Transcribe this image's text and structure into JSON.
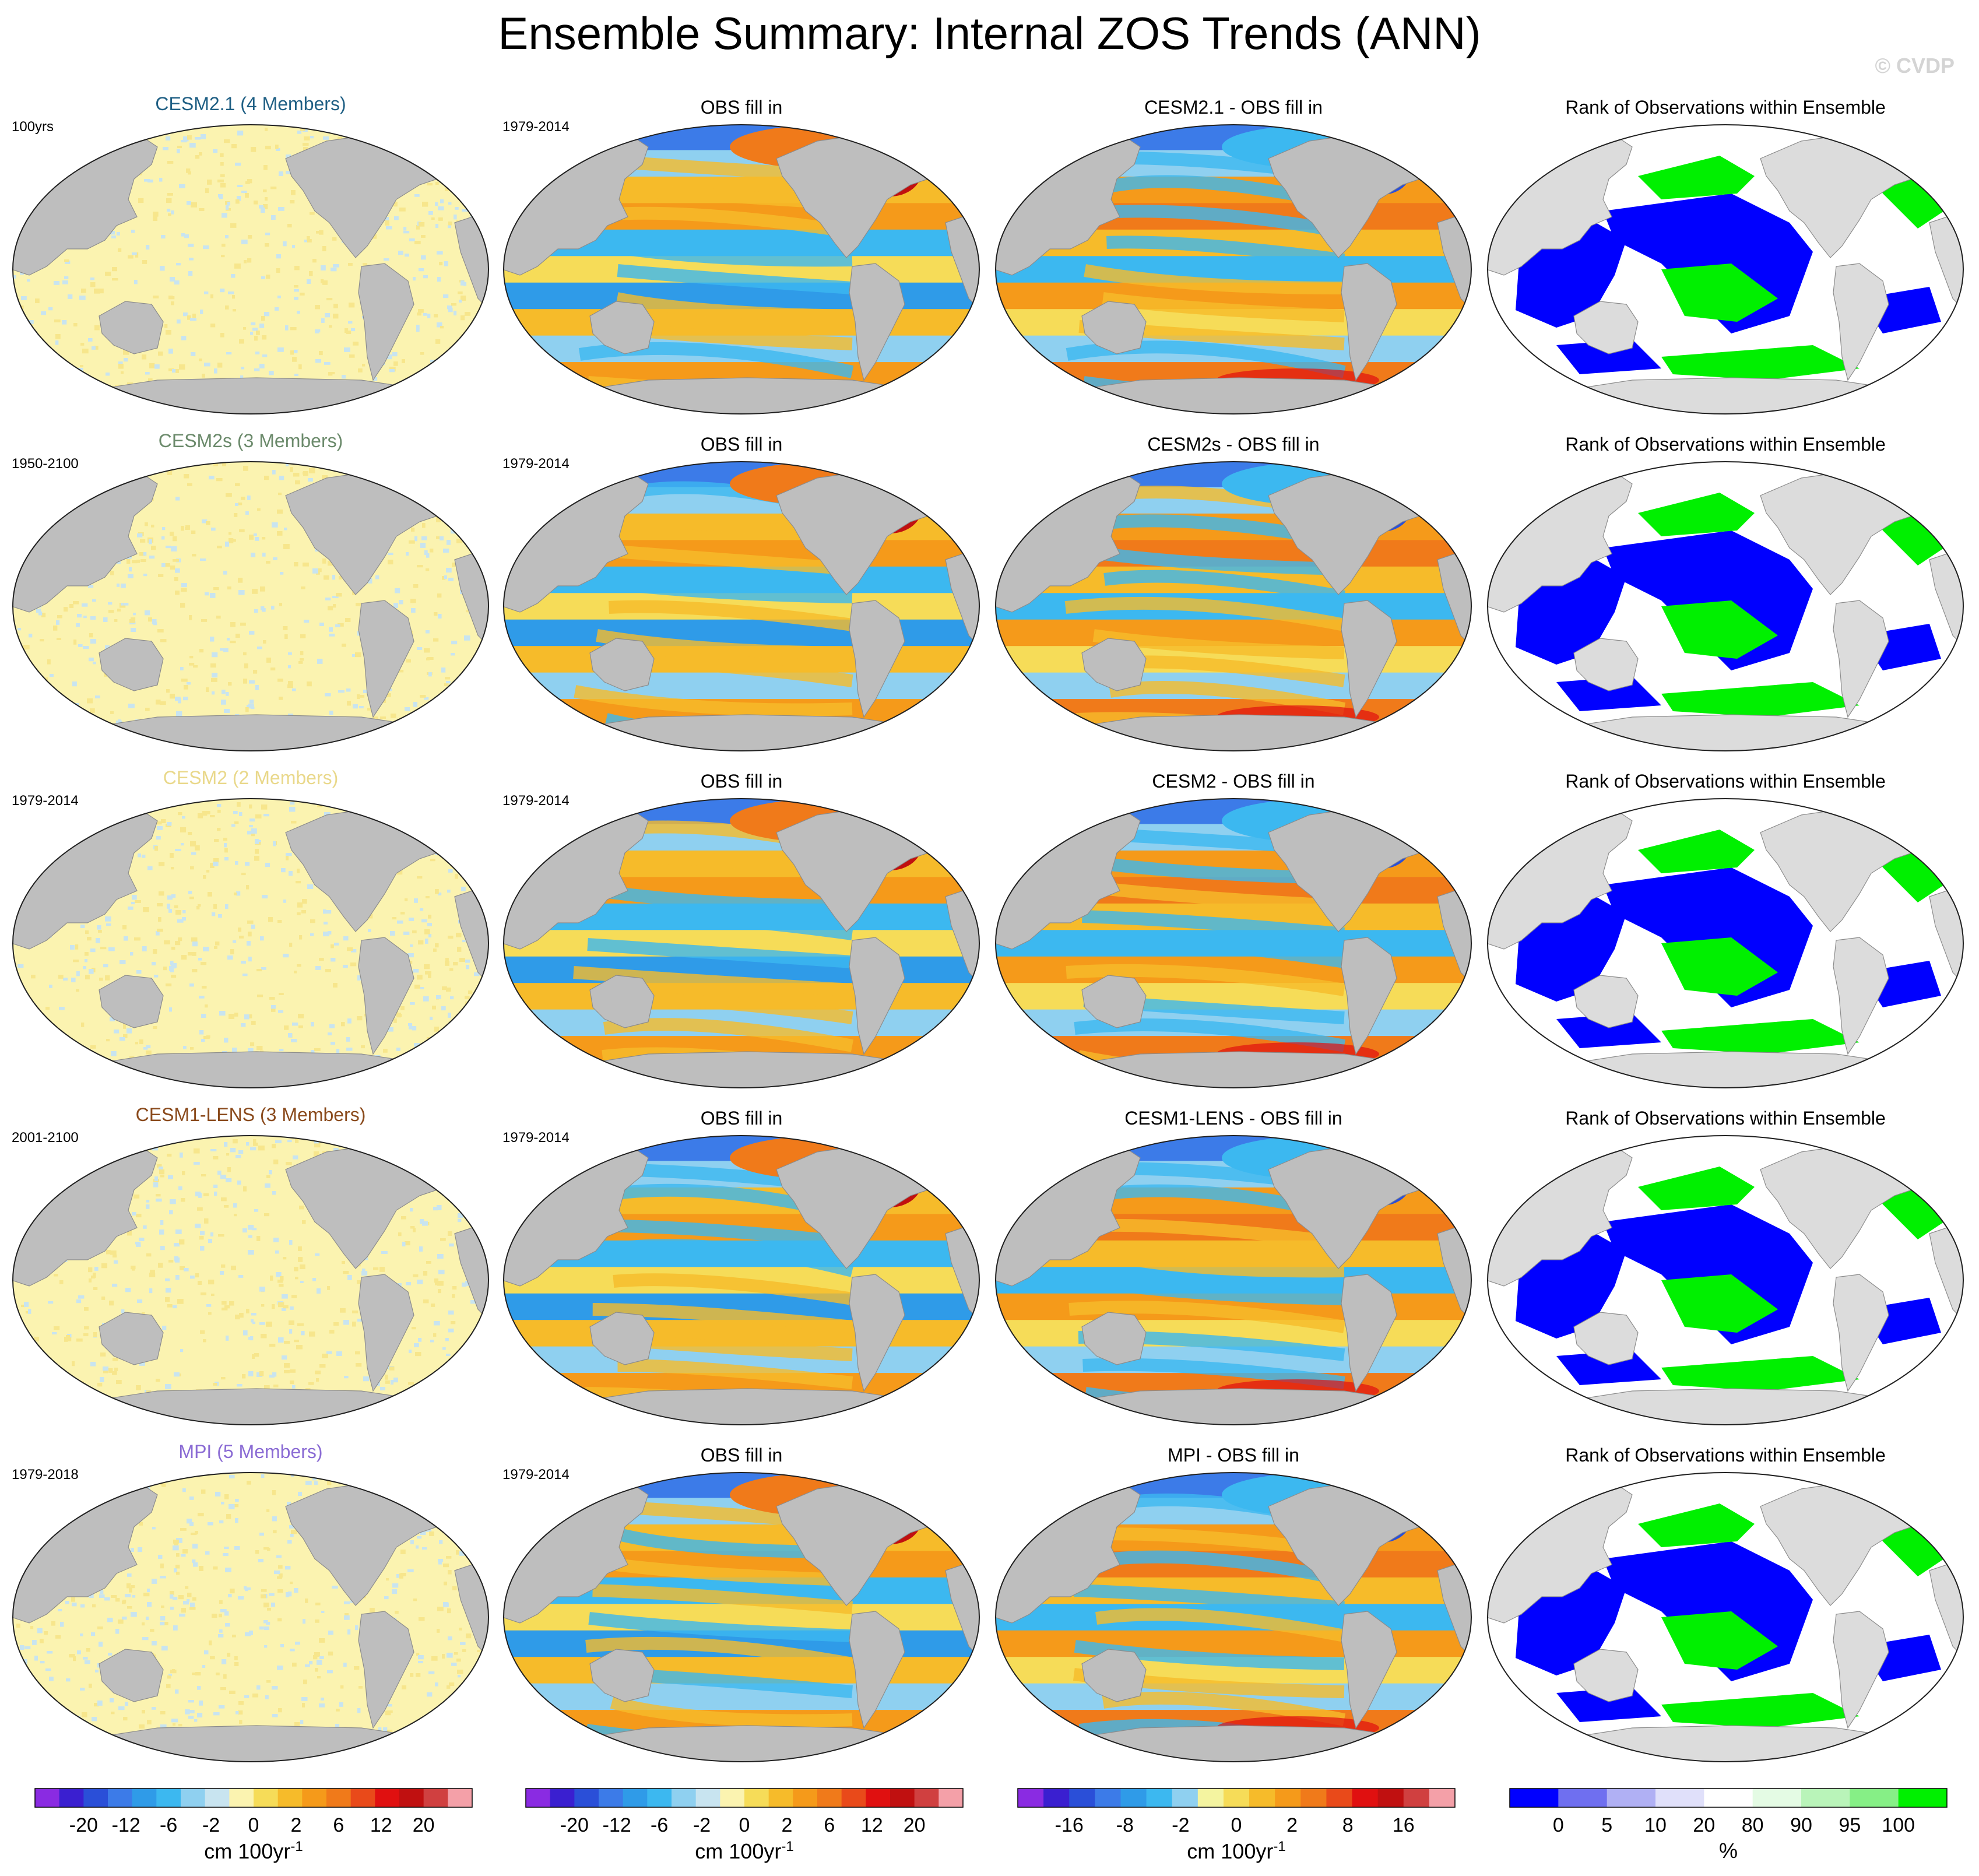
{
  "header": {
    "title": "Ensemble Summary: Internal ZOS Trends (ANN)",
    "credit": "© CVDP"
  },
  "obs_period": "1979-2014",
  "obs_title": "OBS fill in",
  "rank_title": "Rank of Observations within Ensemble",
  "rows": [
    {
      "model": "CESM2.1 (4 Members)",
      "model_color": "#1f5f84",
      "period": "100yrs",
      "diff_title": "CESM2.1 - OBS fill in"
    },
    {
      "model": "CESM2s (3 Members)",
      "model_color": "#6b8a6b",
      "period": "1950-2100",
      "diff_title": "CESM2s - OBS fill in"
    },
    {
      "model": "CESM2 (2 Members)",
      "model_color": "#e9d88a",
      "period": "1979-2014",
      "diff_title": "CESM2 - OBS fill in"
    },
    {
      "model": "CESM1-LENS (3 Members)",
      "model_color": "#8a4a1c",
      "period": "2001-2100",
      "diff_title": "CESM1-LENS - OBS fill in"
    },
    {
      "model": "MPI (5 Members)",
      "model_color": "#8a6bd4",
      "period": "1979-2018",
      "diff_title": "MPI - OBS fill in"
    }
  ],
  "colorbars": [
    {
      "id": "model",
      "unit": "cm 100yr",
      "unit_sup": "-1",
      "colors": [
        "#8a2be2",
        "#3a1fd0",
        "#2a4fd8",
        "#3c7be8",
        "#2f9be8",
        "#3cb8f0",
        "#8fd0f0",
        "#c8e4f0",
        "#fbf3b0",
        "#f6dc58",
        "#f6bb2a",
        "#f59a1a",
        "#f07a1a",
        "#e94a1a",
        "#e01010",
        "#c01010",
        "#d04040",
        "#f4a0a8"
      ],
      "ticks": [
        "-20",
        "-12",
        "-6",
        "-2",
        "0",
        "2",
        "6",
        "12",
        "20"
      ]
    },
    {
      "id": "obs",
      "unit": "cm 100yr",
      "unit_sup": "-1",
      "colors": [
        "#8a2be2",
        "#3a1fd0",
        "#2a4fd8",
        "#3c7be8",
        "#2f9be8",
        "#3cb8f0",
        "#8fd0f0",
        "#c8e4f0",
        "#fbf3b0",
        "#f6dc58",
        "#f6bb2a",
        "#f59a1a",
        "#f07a1a",
        "#e94a1a",
        "#e01010",
        "#c01010",
        "#d04040",
        "#f4a0a8"
      ],
      "ticks": [
        "-20",
        "-12",
        "-6",
        "-2",
        "0",
        "2",
        "6",
        "12",
        "20"
      ]
    },
    {
      "id": "diff",
      "unit": "cm 100yr",
      "unit_sup": "-1",
      "colors": [
        "#8a2be2",
        "#3a1fd0",
        "#2a4fd8",
        "#3c7be8",
        "#2f9be8",
        "#3cb8f0",
        "#8fd0f0",
        "#f4f4a0",
        "#f6dc58",
        "#f6bb2a",
        "#f59a1a",
        "#f07a1a",
        "#e94a1a",
        "#e01010",
        "#c01010",
        "#d04040",
        "#f4a0a8"
      ],
      "ticks": [
        "-16",
        "-8",
        "-2",
        "0",
        "2",
        "8",
        "16"
      ]
    },
    {
      "id": "rank",
      "unit": "%",
      "unit_sup": "",
      "colors": [
        "#0000ff",
        "#6f6ff0",
        "#b0b0f4",
        "#e0e0fa",
        "#ffffff",
        "#e4fbe4",
        "#b9f4b9",
        "#86ef86",
        "#00f000"
      ],
      "ticks": [
        "0",
        "5",
        "10",
        "20",
        "80",
        "90",
        "95",
        "100"
      ]
    }
  ]
}
